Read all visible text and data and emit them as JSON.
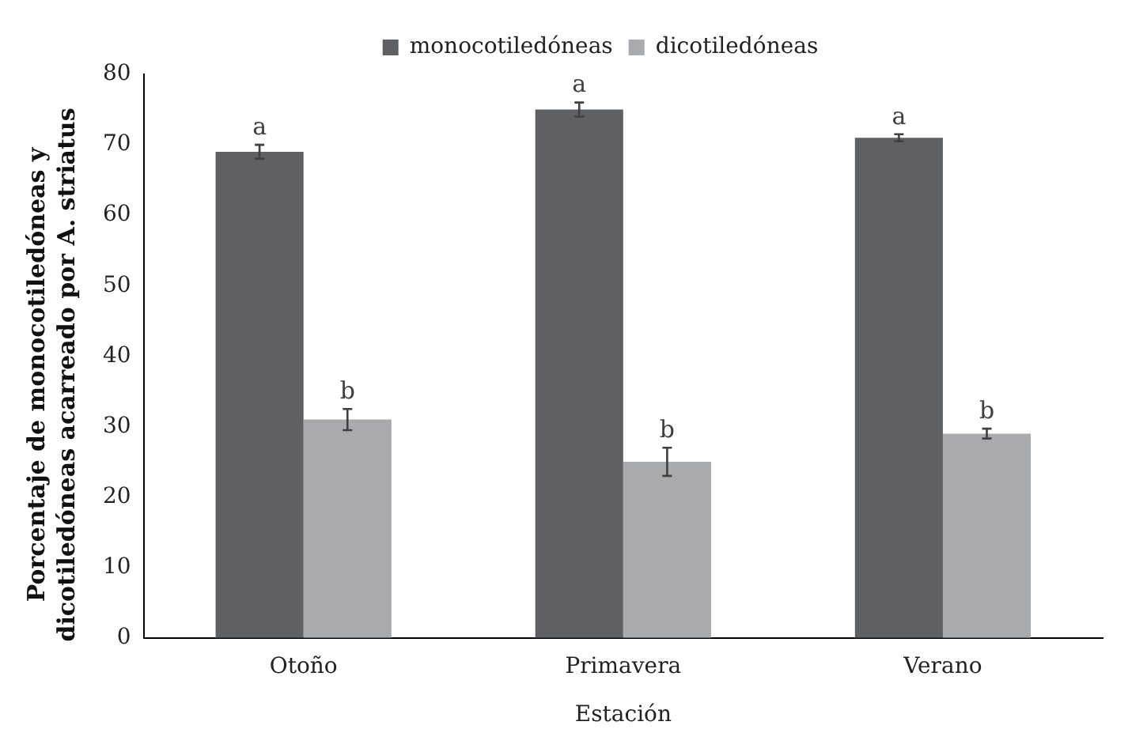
{
  "chart_data": {
    "type": "bar",
    "xlabel": "Estación",
    "ylabel": "Porcentaje de monocotiledóneas y dicotiledóneas acarreado por A. striatus",
    "categories": [
      "Otoño",
      "Primavera",
      "Verano"
    ],
    "series": [
      {
        "name": "monocotiledóneas",
        "color": "#5f6064",
        "values": [
          69,
          75,
          71
        ],
        "errors": [
          1,
          1,
          0.5
        ]
      },
      {
        "name": "dicotiledóneas",
        "color": "#a8aaad",
        "values": [
          31,
          25,
          29
        ],
        "errors": [
          1.5,
          2,
          0.7
        ]
      }
    ],
    "ylim": [
      0,
      80
    ],
    "yticks": [
      0,
      10,
      20,
      30,
      40,
      50,
      60,
      70,
      80
    ],
    "grid": false,
    "legend": "top",
    "annotations": [
      {
        "text": "a",
        "x": "Otoño",
        "y": 70
      },
      {
        "text": "b",
        "x": "Otoño",
        "y": 32.5
      },
      {
        "text": "a",
        "x": "Primavera",
        "y": 76
      },
      {
        "text": "b",
        "x": "Primavera",
        "y": 27
      },
      {
        "text": "a",
        "x": "Verano",
        "y": 71.5
      },
      {
        "text": "b",
        "x": "Verano",
        "y": 29.7
      }
    ]
  }
}
